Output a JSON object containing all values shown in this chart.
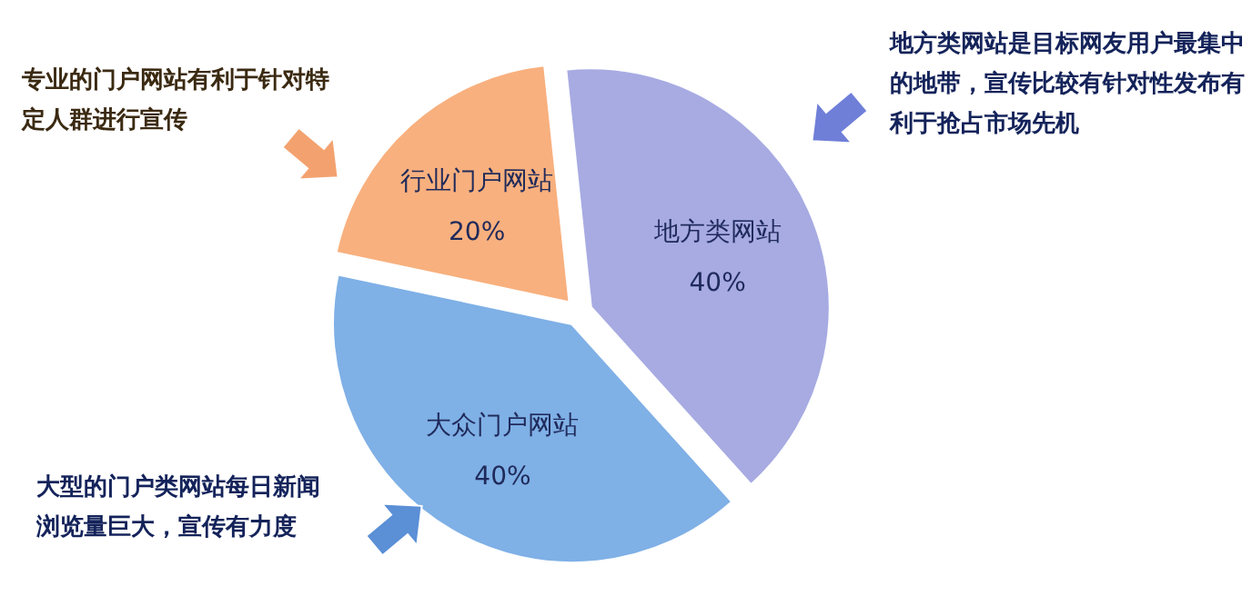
{
  "chart_data": {
    "type": "pie",
    "categories": [
      "地方类网站",
      "大众门户网站",
      "行业门户网站"
    ],
    "values": [
      40,
      40,
      20
    ],
    "value_labels": [
      "40%",
      "40%",
      "20%"
    ],
    "colors": [
      "#a7abe2",
      "#7fb0e6",
      "#f8b07e"
    ],
    "annotations": [
      "专业的门户网站有利于针对特定人群进行宣传",
      "地方类网站是目标网友用户最集中的地带，宣传比较有针对性发布有利于抢占市场先机",
      "大型的门户类网站每日新闻浏览量巨大，宣传有力度"
    ]
  }
}
